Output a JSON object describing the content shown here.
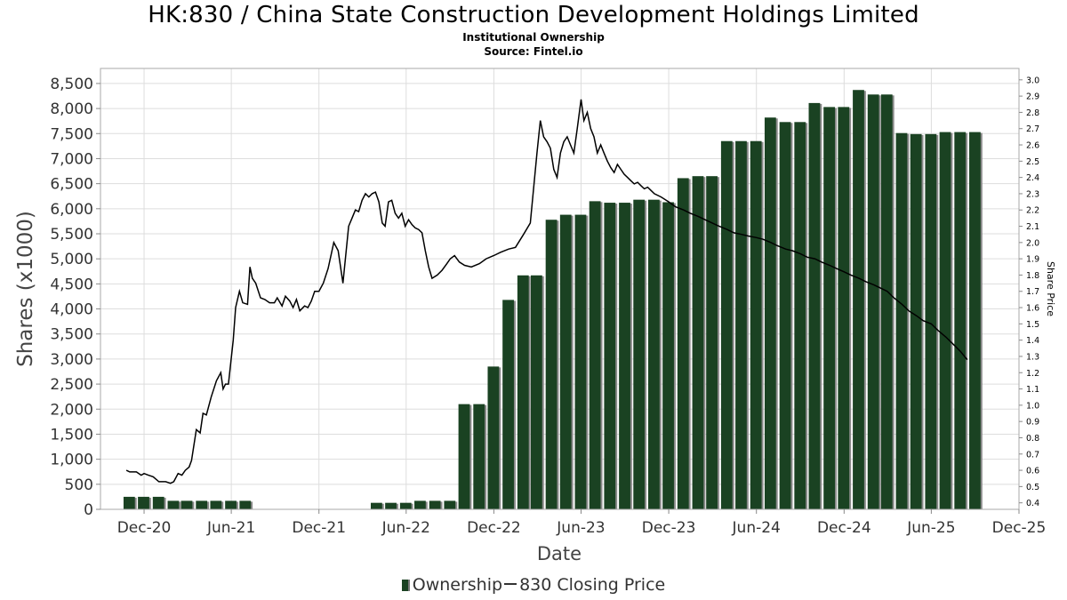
{
  "header": {
    "title": "HK:830 / China State Construction Development Holdings Limited",
    "subtitle": "Institutional Ownership",
    "source": "Source: Fintel.io"
  },
  "legend": {
    "ownership_label": "Ownership",
    "price_label": "830 Closing Price"
  },
  "colors": {
    "bar": "#1a4222",
    "bar_shadow": "#8a8a8a",
    "line": "#000000",
    "grid": "#dddddd"
  },
  "chart_data": {
    "type": "bar",
    "title": "HK:830 / China State Construction Development Holdings Limited",
    "subtitle": "Institutional Ownership",
    "xlabel": "Date",
    "ylabel": "Shares (x1000)",
    "y2label": "Share Price",
    "xlim": [
      "2020-09-01",
      "2025-12-01"
    ],
    "ylim": [
      0,
      8800
    ],
    "y2lim": [
      0.36,
      3.07
    ],
    "x_ticks": [
      {
        "date": "2020-12-01",
        "label": "Dec-20"
      },
      {
        "date": "2021-06-01",
        "label": "Jun-21"
      },
      {
        "date": "2021-12-01",
        "label": "Dec-21"
      },
      {
        "date": "2022-06-01",
        "label": "Jun-22"
      },
      {
        "date": "2022-12-01",
        "label": "Dec-22"
      },
      {
        "date": "2023-06-01",
        "label": "Jun-23"
      },
      {
        "date": "2023-12-01",
        "label": "Dec-23"
      },
      {
        "date": "2024-06-01",
        "label": "Jun-24"
      },
      {
        "date": "2024-12-01",
        "label": "Dec-24"
      },
      {
        "date": "2025-06-01",
        "label": "Jun-25"
      },
      {
        "date": "2025-12-01",
        "label": "Dec-25"
      }
    ],
    "y_ticks": [
      "0",
      "500",
      "1,000",
      "1,500",
      "2,000",
      "2,500",
      "3,000",
      "3,500",
      "4,000",
      "4,500",
      "5,000",
      "5,500",
      "6,000",
      "6,500",
      "7,000",
      "7,500",
      "8,000",
      "8,500"
    ],
    "y2_ticks": [
      "0.4",
      "0.5",
      "0.6",
      "0.7",
      "0.8",
      "0.9",
      "1.0",
      "1.1",
      "1.2",
      "1.3",
      "1.4",
      "1.5",
      "1.6",
      "1.7",
      "1.8",
      "1.9",
      "2.0",
      "2.1",
      "2.2",
      "2.3",
      "2.4",
      "2.5",
      "2.6",
      "2.7",
      "2.8",
      "2.9",
      "3.0"
    ],
    "grid": true,
    "legend_position": "bottom",
    "series": [
      {
        "name": "Ownership",
        "type": "bar",
        "x": [
          "2020-10-31",
          "2020-11-30",
          "2020-12-31",
          "2021-01-31",
          "2021-02-28",
          "2021-03-31",
          "2021-04-30",
          "2021-05-31",
          "2021-06-30",
          "2021-07-31",
          "2021-08-31",
          "2021-09-30",
          "2021-10-31",
          "2021-11-30",
          "2021-12-31",
          "2022-01-31",
          "2022-02-28",
          "2022-03-31",
          "2022-04-30",
          "2022-05-31",
          "2022-06-30",
          "2022-07-31",
          "2022-08-31",
          "2022-09-30",
          "2022-10-31",
          "2022-11-30",
          "2022-12-31",
          "2023-01-31",
          "2023-02-28",
          "2023-03-31",
          "2023-04-30",
          "2023-05-31",
          "2023-06-30",
          "2023-07-31",
          "2023-08-31",
          "2023-09-30",
          "2023-10-31",
          "2023-11-30",
          "2023-12-31",
          "2024-01-31",
          "2024-02-29",
          "2024-03-31",
          "2024-04-30",
          "2024-05-31",
          "2024-06-30",
          "2024-07-31",
          "2024-08-31",
          "2024-09-30",
          "2024-10-31",
          "2024-11-30",
          "2024-12-31",
          "2025-01-31",
          "2025-02-28",
          "2025-03-31",
          "2025-04-30",
          "2025-05-31",
          "2025-06-30",
          "2025-07-31",
          "2025-08-31"
        ],
        "values": [
          250,
          250,
          250,
          170,
          170,
          170,
          170,
          170,
          170,
          0,
          0,
          0,
          0,
          0,
          0,
          0,
          0,
          130,
          130,
          130,
          170,
          170,
          170,
          2100,
          2100,
          2850,
          4180,
          4670,
          4670,
          5780,
          5880,
          5880,
          6150,
          6120,
          6120,
          6180,
          6180,
          6130,
          6610,
          6650,
          6650,
          7350,
          7350,
          7350,
          7820,
          7730,
          7730,
          8110,
          8030,
          8030,
          8370,
          8280,
          8280,
          7510,
          7490,
          7490,
          7530,
          7530,
          7530
        ]
      },
      {
        "name": "830 Closing Price",
        "type": "line",
        "points": [
          [
            "2020-10-25",
            0.6
          ],
          [
            "2020-11-01",
            0.59
          ],
          [
            "2020-11-15",
            0.59
          ],
          [
            "2020-11-25",
            0.57
          ],
          [
            "2020-12-01",
            0.58
          ],
          [
            "2020-12-10",
            0.57
          ],
          [
            "2020-12-20",
            0.56
          ],
          [
            "2021-01-01",
            0.53
          ],
          [
            "2021-01-15",
            0.53
          ],
          [
            "2021-01-25",
            0.52
          ],
          [
            "2021-02-01",
            0.53
          ],
          [
            "2021-02-10",
            0.58
          ],
          [
            "2021-02-18",
            0.57
          ],
          [
            "2021-02-25",
            0.6
          ],
          [
            "2021-03-05",
            0.62
          ],
          [
            "2021-03-10",
            0.66
          ],
          [
            "2021-03-20",
            0.85
          ],
          [
            "2021-03-28",
            0.83
          ],
          [
            "2021-04-03",
            0.95
          ],
          [
            "2021-04-10",
            0.94
          ],
          [
            "2021-04-20",
            1.05
          ],
          [
            "2021-05-01",
            1.15
          ],
          [
            "2021-05-10",
            1.2
          ],
          [
            "2021-05-15",
            1.1
          ],
          [
            "2021-05-20",
            1.13
          ],
          [
            "2021-05-26",
            1.13
          ],
          [
            "2021-06-05",
            1.4
          ],
          [
            "2021-06-10",
            1.6
          ],
          [
            "2021-06-18",
            1.7
          ],
          [
            "2021-06-25",
            1.63
          ],
          [
            "2021-07-05",
            1.62
          ],
          [
            "2021-07-10",
            1.85
          ],
          [
            "2021-07-15",
            1.78
          ],
          [
            "2021-07-22",
            1.75
          ],
          [
            "2021-08-01",
            1.66
          ],
          [
            "2021-08-10",
            1.65
          ],
          [
            "2021-08-20",
            1.63
          ],
          [
            "2021-08-30",
            1.63
          ],
          [
            "2021-09-05",
            1.66
          ],
          [
            "2021-09-15",
            1.61
          ],
          [
            "2021-09-22",
            1.67
          ],
          [
            "2021-10-01",
            1.64
          ],
          [
            "2021-10-08",
            1.6
          ],
          [
            "2021-10-15",
            1.65
          ],
          [
            "2021-10-22",
            1.58
          ],
          [
            "2021-11-01",
            1.61
          ],
          [
            "2021-11-08",
            1.6
          ],
          [
            "2021-11-15",
            1.64
          ],
          [
            "2021-11-22",
            1.7
          ],
          [
            "2021-12-01",
            1.7
          ],
          [
            "2021-12-10",
            1.75
          ],
          [
            "2021-12-20",
            1.84
          ],
          [
            "2022-01-01",
            2.0
          ],
          [
            "2022-01-10",
            1.95
          ],
          [
            "2022-01-20",
            1.75
          ],
          [
            "2022-02-01",
            2.1
          ],
          [
            "2022-02-08",
            2.15
          ],
          [
            "2022-02-15",
            2.2
          ],
          [
            "2022-02-22",
            2.19
          ],
          [
            "2022-03-01",
            2.26
          ],
          [
            "2022-03-08",
            2.3
          ],
          [
            "2022-03-15",
            2.28
          ],
          [
            "2022-03-22",
            2.3
          ],
          [
            "2022-03-29",
            2.31
          ],
          [
            "2022-04-05",
            2.25
          ],
          [
            "2022-04-12",
            2.12
          ],
          [
            "2022-04-18",
            2.1
          ],
          [
            "2022-04-25",
            2.25
          ],
          [
            "2022-05-02",
            2.26
          ],
          [
            "2022-05-09",
            2.18
          ],
          [
            "2022-05-16",
            2.15
          ],
          [
            "2022-05-23",
            2.18
          ],
          [
            "2022-05-30",
            2.1
          ],
          [
            "2022-06-06",
            2.14
          ],
          [
            "2022-06-13",
            2.11
          ],
          [
            "2022-06-20",
            2.09
          ],
          [
            "2022-06-27",
            2.08
          ],
          [
            "2022-07-04",
            2.06
          ],
          [
            "2022-07-11",
            1.95
          ],
          [
            "2022-07-18",
            1.85
          ],
          [
            "2022-07-25",
            1.78
          ],
          [
            "2022-08-05",
            1.8
          ],
          [
            "2022-08-15",
            1.83
          ],
          [
            "2022-08-25",
            1.87
          ],
          [
            "2022-09-01",
            1.9
          ],
          [
            "2022-09-10",
            1.92
          ],
          [
            "2022-09-20",
            1.88
          ],
          [
            "2022-10-01",
            1.86
          ],
          [
            "2022-10-15",
            1.85
          ],
          [
            "2022-11-01",
            1.87
          ],
          [
            "2022-11-15",
            1.9
          ],
          [
            "2022-12-01",
            1.92
          ],
          [
            "2022-12-15",
            1.94
          ],
          [
            "2023-01-01",
            1.96
          ],
          [
            "2023-01-15",
            1.97
          ],
          [
            "2023-02-01",
            2.05
          ],
          [
            "2023-02-15",
            2.12
          ],
          [
            "2023-03-01",
            2.55
          ],
          [
            "2023-03-08",
            2.75
          ],
          [
            "2023-03-15",
            2.65
          ],
          [
            "2023-03-22",
            2.62
          ],
          [
            "2023-03-29",
            2.58
          ],
          [
            "2023-04-05",
            2.45
          ],
          [
            "2023-04-12",
            2.4
          ],
          [
            "2023-04-19",
            2.55
          ],
          [
            "2023-04-26",
            2.62
          ],
          [
            "2023-05-03",
            2.65
          ],
          [
            "2023-05-10",
            2.6
          ],
          [
            "2023-05-17",
            2.55
          ],
          [
            "2023-05-24",
            2.7
          ],
          [
            "2023-06-01",
            2.88
          ],
          [
            "2023-06-07",
            2.75
          ],
          [
            "2023-06-14",
            2.8
          ],
          [
            "2023-06-21",
            2.7
          ],
          [
            "2023-06-28",
            2.65
          ],
          [
            "2023-07-05",
            2.55
          ],
          [
            "2023-07-12",
            2.6
          ],
          [
            "2023-07-19",
            2.55
          ],
          [
            "2023-07-26",
            2.5
          ],
          [
            "2023-08-02",
            2.46
          ],
          [
            "2023-08-09",
            2.43
          ],
          [
            "2023-08-16",
            2.48
          ],
          [
            "2023-08-23",
            2.45
          ],
          [
            "2023-08-30",
            2.42
          ],
          [
            "2023-09-06",
            2.4
          ],
          [
            "2023-09-13",
            2.38
          ],
          [
            "2023-09-20",
            2.36
          ],
          [
            "2023-09-27",
            2.37
          ],
          [
            "2023-10-04",
            2.35
          ],
          [
            "2023-10-11",
            2.33
          ],
          [
            "2023-10-18",
            2.34
          ],
          [
            "2023-10-25",
            2.32
          ],
          [
            "2023-11-01",
            2.3
          ],
          [
            "2023-11-15",
            2.28
          ],
          [
            "2023-12-01",
            2.25
          ],
          [
            "2023-12-15",
            2.22
          ],
          [
            "2024-01-01",
            2.2
          ],
          [
            "2024-01-15",
            2.18
          ],
          [
            "2024-02-01",
            2.16
          ],
          [
            "2024-02-15",
            2.14
          ],
          [
            "2024-03-01",
            2.12
          ],
          [
            "2024-03-15",
            2.1
          ],
          [
            "2024-04-01",
            2.08
          ],
          [
            "2024-04-15",
            2.06
          ],
          [
            "2024-05-01",
            2.05
          ],
          [
            "2024-05-15",
            2.04
          ],
          [
            "2024-06-01",
            2.03
          ],
          [
            "2024-06-15",
            2.02
          ],
          [
            "2024-07-01",
            2.0
          ],
          [
            "2024-07-15",
            1.98
          ],
          [
            "2024-08-01",
            1.96
          ],
          [
            "2024-08-15",
            1.95
          ],
          [
            "2024-09-01",
            1.93
          ],
          [
            "2024-09-15",
            1.91
          ],
          [
            "2024-10-01",
            1.9
          ],
          [
            "2024-10-15",
            1.88
          ],
          [
            "2024-11-01",
            1.86
          ],
          [
            "2024-11-15",
            1.84
          ],
          [
            "2024-12-01",
            1.82
          ],
          [
            "2024-12-15",
            1.8
          ],
          [
            "2025-01-01",
            1.78
          ],
          [
            "2025-01-15",
            1.76
          ],
          [
            "2025-02-01",
            1.74
          ],
          [
            "2025-02-15",
            1.72
          ],
          [
            "2025-03-01",
            1.7
          ],
          [
            "2025-03-15",
            1.66
          ],
          [
            "2025-04-01",
            1.62
          ],
          [
            "2025-04-15",
            1.58
          ],
          [
            "2025-05-01",
            1.55
          ],
          [
            "2025-05-15",
            1.52
          ],
          [
            "2025-06-01",
            1.5
          ],
          [
            "2025-06-15",
            1.46
          ],
          [
            "2025-07-01",
            1.42
          ],
          [
            "2025-07-15",
            1.38
          ],
          [
            "2025-08-01",
            1.33
          ],
          [
            "2025-08-15",
            1.28
          ]
        ]
      }
    ]
  }
}
